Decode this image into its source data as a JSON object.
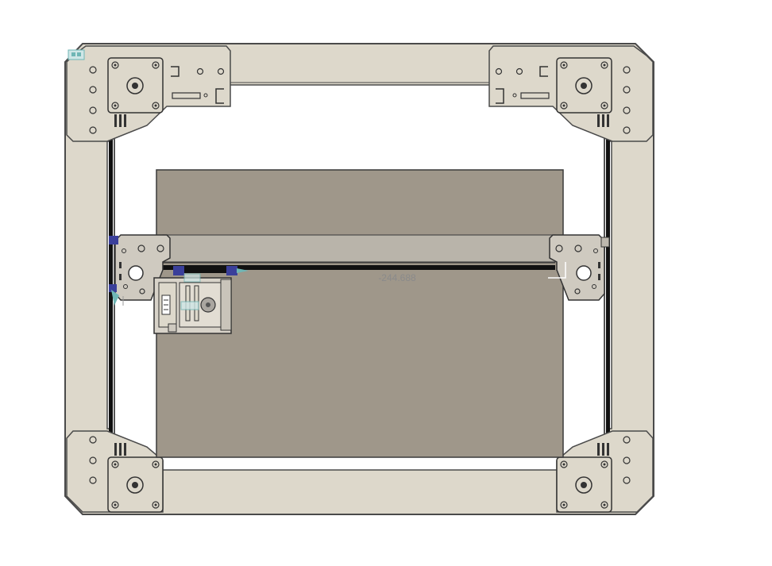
{
  "colors": {
    "background": "#ffffff",
    "frame_plate": "#ddd8cb",
    "frame_stroke": "#4a4a4a",
    "bed": "#9f978a",
    "bed_stroke": "#3a3a3a",
    "gantry": "#b9b4aa",
    "rail": "#111111",
    "motor": "#cfcac0",
    "clip_blue": "#3a3f9a",
    "marker_teal": "#6fb6b5",
    "dimension_text": "#8a8a8a"
  },
  "dimension": {
    "label": "-244.688"
  },
  "icons": {
    "stepper_motor": "stepper-motor-icon",
    "extruder": "extruder-carriage-icon",
    "axis_triad": "axis-marker-icon"
  }
}
